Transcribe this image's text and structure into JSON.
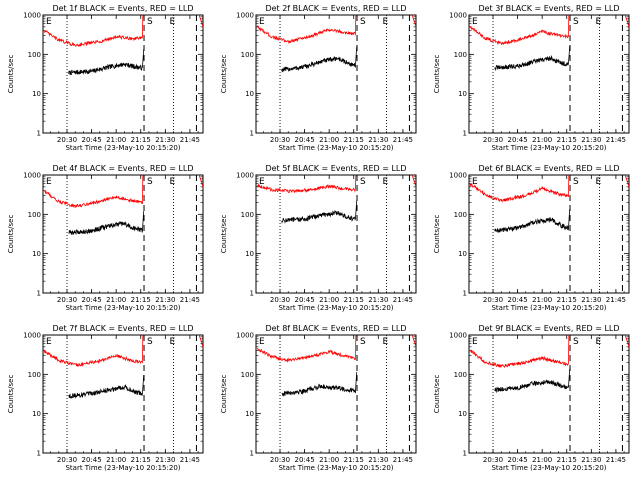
{
  "figure": {
    "background": "#ffffff",
    "colors": {
      "events": "#000000",
      "lld": "#ff0000",
      "axes": "#000000"
    }
  },
  "chart_data": [
    {
      "type": "line",
      "title": "Det 1f BLACK = Events, RED = LLD",
      "xlabel": "Start Time (23-May-10 20:15:20)",
      "ylabel": "Counts/sec",
      "y_scale": "log",
      "ylim": [
        1,
        1000
      ],
      "yticks": [
        1,
        10,
        100,
        1000
      ],
      "xticks": [
        "20:30",
        "20:45",
        "21:00",
        "21:15",
        "21:30",
        "21:45"
      ],
      "xlim": [
        "20:15:20",
        "21:53"
      ],
      "vlines": {
        "dotted": [
          "20:30",
          "21:35"
        ],
        "dashed": [
          "21:17",
          "21:49"
        ]
      },
      "markers": [
        "E",
        "S",
        "E"
      ],
      "series": [
        {
          "name": "Events",
          "color": "#000000",
          "values": [
            {
              "x": "20:31",
              "y": 34
            },
            {
              "x": "20:45",
              "y": 37
            },
            {
              "x": "20:55",
              "y": 47
            },
            {
              "x": "21:05",
              "y": 56
            },
            {
              "x": "21:12",
              "y": 48
            },
            {
              "x": "21:16",
              "y": 45
            }
          ]
        },
        {
          "name": "LLD",
          "color": "#ff0000",
          "values": [
            {
              "x": "20:16",
              "y": 400
            },
            {
              "x": "20:25",
              "y": 230
            },
            {
              "x": "20:35",
              "y": 170
            },
            {
              "x": "20:50",
              "y": 210
            },
            {
              "x": "21:00",
              "y": 280
            },
            {
              "x": "21:10",
              "y": 250
            },
            {
              "x": "21:16",
              "y": 260
            }
          ]
        }
      ]
    },
    {
      "type": "line",
      "title": "Det 2f BLACK = Events, RED = LLD",
      "xlabel": "Start Time (23-May-10 20:15:20)",
      "ylabel": "Counts/sec",
      "y_scale": "log",
      "ylim": [
        1,
        1000
      ],
      "yticks": [
        1,
        10,
        100,
        1000
      ],
      "xticks": [
        "20:30",
        "20:45",
        "21:00",
        "21:15",
        "21:30",
        "21:45"
      ],
      "xlim": [
        "20:15:20",
        "21:53"
      ],
      "vlines": {
        "dotted": [
          "20:30",
          "21:35"
        ],
        "dashed": [
          "21:17",
          "21:49"
        ]
      },
      "markers": [
        "E",
        "S",
        "E"
      ],
      "series": [
        {
          "name": "Events",
          "color": "#000000",
          "values": [
            {
              "x": "20:31",
              "y": 40
            },
            {
              "x": "20:45",
              "y": 48
            },
            {
              "x": "20:55",
              "y": 65
            },
            {
              "x": "21:05",
              "y": 80
            },
            {
              "x": "21:12",
              "y": 58
            },
            {
              "x": "21:16",
              "y": 52
            }
          ]
        },
        {
          "name": "LLD",
          "color": "#ff0000",
          "values": [
            {
              "x": "20:16",
              "y": 500
            },
            {
              "x": "20:25",
              "y": 280
            },
            {
              "x": "20:35",
              "y": 210
            },
            {
              "x": "20:50",
              "y": 300
            },
            {
              "x": "21:00",
              "y": 420
            },
            {
              "x": "21:10",
              "y": 360
            },
            {
              "x": "21:16",
              "y": 330
            }
          ]
        }
      ]
    },
    {
      "type": "line",
      "title": "Det 3f BLACK = Events, RED = LLD",
      "xlabel": "Start Time (23-May-10 20:15:20)",
      "ylabel": "Counts/sec",
      "y_scale": "log",
      "ylim": [
        1,
        1000
      ],
      "yticks": [
        1,
        10,
        100,
        1000
      ],
      "xticks": [
        "20:30",
        "20:45",
        "21:00",
        "21:15",
        "21:30",
        "21:45"
      ],
      "xlim": [
        "20:15:20",
        "21:53"
      ],
      "vlines": {
        "dotted": [
          "20:30",
          "21:35"
        ],
        "dashed": [
          "21:17",
          "21:49"
        ]
      },
      "markers": [
        "E",
        "S",
        "E"
      ],
      "series": [
        {
          "name": "Events",
          "color": "#000000",
          "values": [
            {
              "x": "20:31",
              "y": 45
            },
            {
              "x": "20:45",
              "y": 50
            },
            {
              "x": "20:55",
              "y": 65
            },
            {
              "x": "21:05",
              "y": 80
            },
            {
              "x": "21:12",
              "y": 60
            },
            {
              "x": "21:16",
              "y": 55
            }
          ]
        },
        {
          "name": "LLD",
          "color": "#ff0000",
          "values": [
            {
              "x": "20:16",
              "y": 500
            },
            {
              "x": "20:25",
              "y": 260
            },
            {
              "x": "20:35",
              "y": 190
            },
            {
              "x": "20:50",
              "y": 260
            },
            {
              "x": "21:00",
              "y": 380
            },
            {
              "x": "21:10",
              "y": 300
            },
            {
              "x": "21:16",
              "y": 280
            }
          ]
        }
      ]
    },
    {
      "type": "line",
      "title": "Det 4f BLACK = Events, RED = LLD",
      "xlabel": "Start Time (23-May-10 20:15:20)",
      "ylabel": "Counts/sec",
      "y_scale": "log",
      "ylim": [
        1,
        1000
      ],
      "yticks": [
        1,
        10,
        100,
        1000
      ],
      "xticks": [
        "20:30",
        "20:45",
        "21:00",
        "21:15",
        "21:30",
        "21:45"
      ],
      "xlim": [
        "20:15:20",
        "21:53"
      ],
      "vlines": {
        "dotted": [
          "20:30",
          "21:35"
        ],
        "dashed": [
          "21:17",
          "21:49"
        ]
      },
      "markers": [
        "E",
        "S",
        "E"
      ],
      "series": [
        {
          "name": "Events",
          "color": "#000000",
          "values": [
            {
              "x": "20:31",
              "y": 34
            },
            {
              "x": "20:45",
              "y": 38
            },
            {
              "x": "20:55",
              "y": 50
            },
            {
              "x": "21:05",
              "y": 58
            },
            {
              "x": "21:12",
              "y": 42
            },
            {
              "x": "21:16",
              "y": 40
            }
          ]
        },
        {
          "name": "LLD",
          "color": "#ff0000",
          "values": [
            {
              "x": "20:16",
              "y": 400
            },
            {
              "x": "20:25",
              "y": 210
            },
            {
              "x": "20:35",
              "y": 160
            },
            {
              "x": "20:50",
              "y": 210
            },
            {
              "x": "21:00",
              "y": 280
            },
            {
              "x": "21:10",
              "y": 220
            },
            {
              "x": "21:16",
              "y": 200
            }
          ]
        }
      ]
    },
    {
      "type": "line",
      "title": "Det 5f BLACK = Events, RED = LLD",
      "xlabel": "Start Time (23-May-10 20:15:20)",
      "ylabel": "Counts/sec",
      "y_scale": "log",
      "ylim": [
        1,
        1000
      ],
      "yticks": [
        1,
        10,
        100,
        1000
      ],
      "xticks": [
        "20:30",
        "20:45",
        "21:00",
        "21:15",
        "21:30",
        "21:45"
      ],
      "xlim": [
        "20:15:20",
        "21:53"
      ],
      "vlines": {
        "dotted": [
          "20:30",
          "21:35"
        ],
        "dashed": [
          "21:17",
          "21:49"
        ]
      },
      "markers": [
        "E",
        "S",
        "E"
      ],
      "series": [
        {
          "name": "Events",
          "color": "#000000",
          "values": [
            {
              "x": "20:31",
              "y": 70
            },
            {
              "x": "20:45",
              "y": 75
            },
            {
              "x": "20:55",
              "y": 95
            },
            {
              "x": "21:05",
              "y": 110
            },
            {
              "x": "21:12",
              "y": 80
            },
            {
              "x": "21:16",
              "y": 75
            }
          ]
        },
        {
          "name": "LLD",
          "color": "#ff0000",
          "values": [
            {
              "x": "20:16",
              "y": 550
            },
            {
              "x": "20:25",
              "y": 420
            },
            {
              "x": "20:35",
              "y": 390
            },
            {
              "x": "20:50",
              "y": 420
            },
            {
              "x": "21:00",
              "y": 520
            },
            {
              "x": "21:10",
              "y": 440
            },
            {
              "x": "21:16",
              "y": 420
            }
          ]
        }
      ]
    },
    {
      "type": "line",
      "title": "Det 6f BLACK = Events, RED = LLD",
      "xlabel": "Start Time (23-May-10 20:15:20)",
      "ylabel": "Counts/sec",
      "y_scale": "log",
      "ylim": [
        1,
        1000
      ],
      "yticks": [
        1,
        10,
        100,
        1000
      ],
      "xticks": [
        "20:30",
        "20:45",
        "21:00",
        "21:15",
        "21:30",
        "21:45"
      ],
      "xlim": [
        "20:15:20",
        "21:53"
      ],
      "vlines": {
        "dotted": [
          "20:30",
          "21:35"
        ],
        "dashed": [
          "21:17",
          "21:49"
        ]
      },
      "markers": [
        "E",
        "S",
        "E"
      ],
      "series": [
        {
          "name": "Events",
          "color": "#000000",
          "values": [
            {
              "x": "20:31",
              "y": 38
            },
            {
              "x": "20:45",
              "y": 45
            },
            {
              "x": "20:55",
              "y": 62
            },
            {
              "x": "21:05",
              "y": 75
            },
            {
              "x": "21:12",
              "y": 50
            },
            {
              "x": "21:16",
              "y": 45
            }
          ]
        },
        {
          "name": "LLD",
          "color": "#ff0000",
          "values": [
            {
              "x": "20:16",
              "y": 600
            },
            {
              "x": "20:25",
              "y": 320
            },
            {
              "x": "20:35",
              "y": 220
            },
            {
              "x": "20:50",
              "y": 300
            },
            {
              "x": "21:00",
              "y": 450
            },
            {
              "x": "21:10",
              "y": 330
            },
            {
              "x": "21:16",
              "y": 300
            }
          ]
        }
      ]
    },
    {
      "type": "line",
      "title": "Det 7f BLACK = Events, RED = LLD",
      "xlabel": "Start Time (23-May-10 20:15:20)",
      "ylabel": "Counts/sec",
      "y_scale": "log",
      "ylim": [
        1,
        1000
      ],
      "yticks": [
        1,
        10,
        100,
        1000
      ],
      "xticks": [
        "20:30",
        "20:45",
        "21:00",
        "21:15",
        "21:30",
        "21:45"
      ],
      "xlim": [
        "20:15:20",
        "21:53"
      ],
      "vlines": {
        "dotted": [
          "20:30",
          "21:35"
        ],
        "dashed": [
          "21:17",
          "21:49"
        ]
      },
      "markers": [
        "E",
        "S",
        "E"
      ],
      "series": [
        {
          "name": "Events",
          "color": "#000000",
          "values": [
            {
              "x": "20:31",
              "y": 28
            },
            {
              "x": "20:45",
              "y": 32
            },
            {
              "x": "20:55",
              "y": 40
            },
            {
              "x": "21:05",
              "y": 48
            },
            {
              "x": "21:12",
              "y": 35
            },
            {
              "x": "21:16",
              "y": 32
            }
          ]
        },
        {
          "name": "LLD",
          "color": "#ff0000",
          "values": [
            {
              "x": "20:16",
              "y": 380
            },
            {
              "x": "20:25",
              "y": 230
            },
            {
              "x": "20:35",
              "y": 170
            },
            {
              "x": "20:50",
              "y": 220
            },
            {
              "x": "21:00",
              "y": 300
            },
            {
              "x": "21:10",
              "y": 220
            },
            {
              "x": "21:16",
              "y": 200
            }
          ]
        }
      ]
    },
    {
      "type": "line",
      "title": "Det 8f BLACK = Events, RED = LLD",
      "xlabel": "Start Time (23-May-10 20:15:20)",
      "ylabel": "Counts/sec",
      "y_scale": "log",
      "ylim": [
        1,
        1000
      ],
      "yticks": [
        1,
        10,
        100,
        1000
      ],
      "xticks": [
        "20:30",
        "20:45",
        "21:00",
        "21:15",
        "21:30",
        "21:45"
      ],
      "xlim": [
        "20:15:20",
        "21:53"
      ],
      "vlines": {
        "dotted": [
          "20:30",
          "21:35"
        ],
        "dashed": [
          "21:17",
          "21:49"
        ]
      },
      "markers": [
        "E",
        "S",
        "E"
      ],
      "series": [
        {
          "name": "Events",
          "color": "#000000",
          "values": [
            {
              "x": "20:31",
              "y": 32
            },
            {
              "x": "20:45",
              "y": 38
            },
            {
              "x": "20:55",
              "y": 50
            },
            {
              "x": "21:05",
              "y": 45
            },
            {
              "x": "21:12",
              "y": 40
            },
            {
              "x": "21:16",
              "y": 38
            }
          ]
        },
        {
          "name": "LLD",
          "color": "#ff0000",
          "values": [
            {
              "x": "20:16",
              "y": 450
            },
            {
              "x": "20:25",
              "y": 280
            },
            {
              "x": "20:35",
              "y": 230
            },
            {
              "x": "20:50",
              "y": 290
            },
            {
              "x": "21:00",
              "y": 380
            },
            {
              "x": "21:10",
              "y": 290
            },
            {
              "x": "21:16",
              "y": 260
            }
          ]
        }
      ]
    },
    {
      "type": "line",
      "title": "Det 9f BLACK = Events, RED = LLD",
      "xlabel": "Start Time (23-May-10 20:15:20)",
      "ylabel": "Counts/sec",
      "y_scale": "log",
      "ylim": [
        1,
        1000
      ],
      "yticks": [
        1,
        10,
        100,
        1000
      ],
      "xticks": [
        "20:30",
        "20:45",
        "21:00",
        "21:15",
        "21:30",
        "21:45"
      ],
      "xlim": [
        "20:15:20",
        "21:53"
      ],
      "vlines": {
        "dotted": [
          "20:30",
          "21:35"
        ],
        "dashed": [
          "21:17",
          "21:49"
        ]
      },
      "markers": [
        "E",
        "S",
        "E"
      ],
      "series": [
        {
          "name": "Events",
          "color": "#000000",
          "values": [
            {
              "x": "20:31",
              "y": 40
            },
            {
              "x": "20:45",
              "y": 45
            },
            {
              "x": "20:55",
              "y": 58
            },
            {
              "x": "21:05",
              "y": 65
            },
            {
              "x": "21:12",
              "y": 50
            },
            {
              "x": "21:16",
              "y": 46
            }
          ]
        },
        {
          "name": "LLD",
          "color": "#ff0000",
          "values": [
            {
              "x": "20:16",
              "y": 400
            },
            {
              "x": "20:25",
              "y": 210
            },
            {
              "x": "20:35",
              "y": 160
            },
            {
              "x": "20:50",
              "y": 200
            },
            {
              "x": "21:00",
              "y": 260
            },
            {
              "x": "21:10",
              "y": 200
            },
            {
              "x": "21:16",
              "y": 180
            }
          ]
        }
      ]
    }
  ]
}
